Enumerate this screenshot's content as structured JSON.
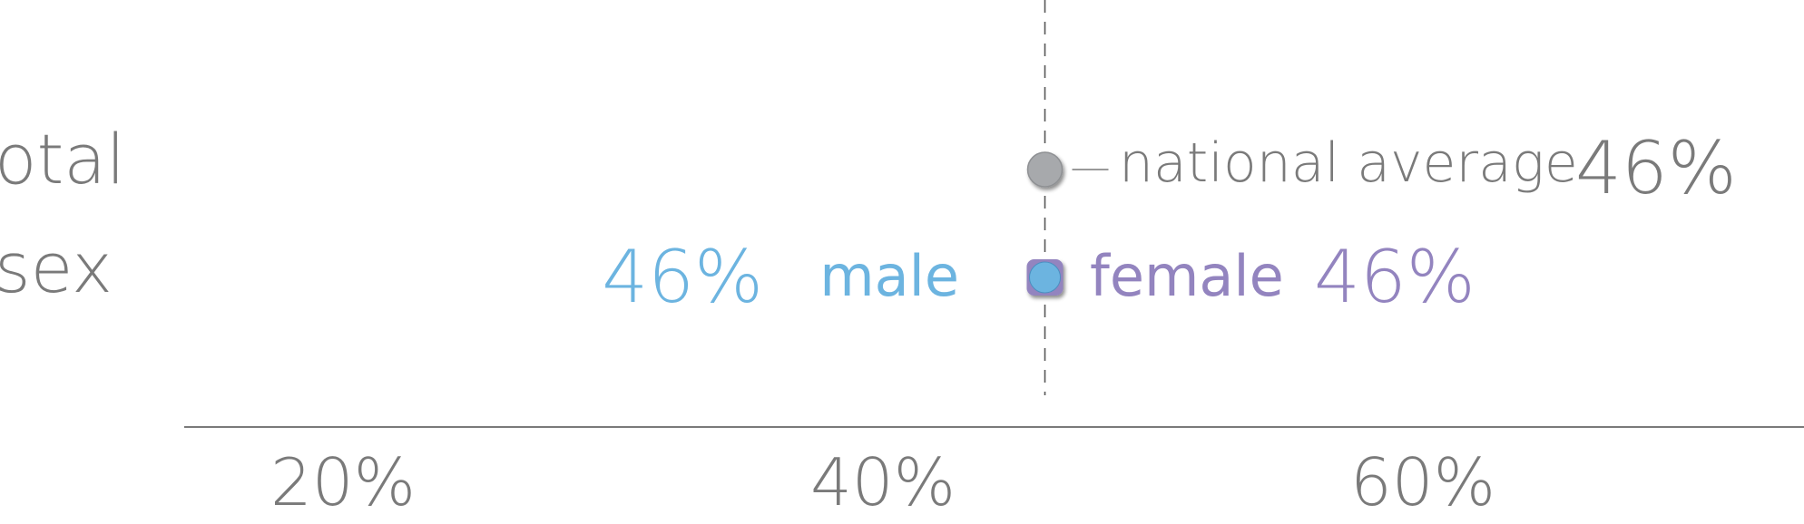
{
  "chart_data": {
    "type": "scatter",
    "title": "",
    "xlabel": "",
    "ylabel": "",
    "x_ticks": [
      "20%",
      "40%",
      "60%"
    ],
    "x_tick_values": [
      20,
      40,
      60
    ],
    "rows": [
      "total",
      "sex"
    ],
    "reference_line": {
      "x": 46
    },
    "national_average": {
      "row": "total",
      "label": "national average",
      "value": 46,
      "value_label": "46%",
      "color": "#a7a9ac"
    },
    "series": [
      {
        "name": "male",
        "row": "sex",
        "value": 46,
        "value_label": "46%",
        "color": "#6cb4e0"
      },
      {
        "name": "female",
        "row": "sex",
        "value": 46,
        "value_label": "46%",
        "color": "#9384bf"
      }
    ],
    "colors": {
      "axis": "#7a7a7a",
      "text": "#7a7a7a",
      "male": "#6cb4e0",
      "female": "#9384bf",
      "average": "#a7a9ac"
    }
  }
}
